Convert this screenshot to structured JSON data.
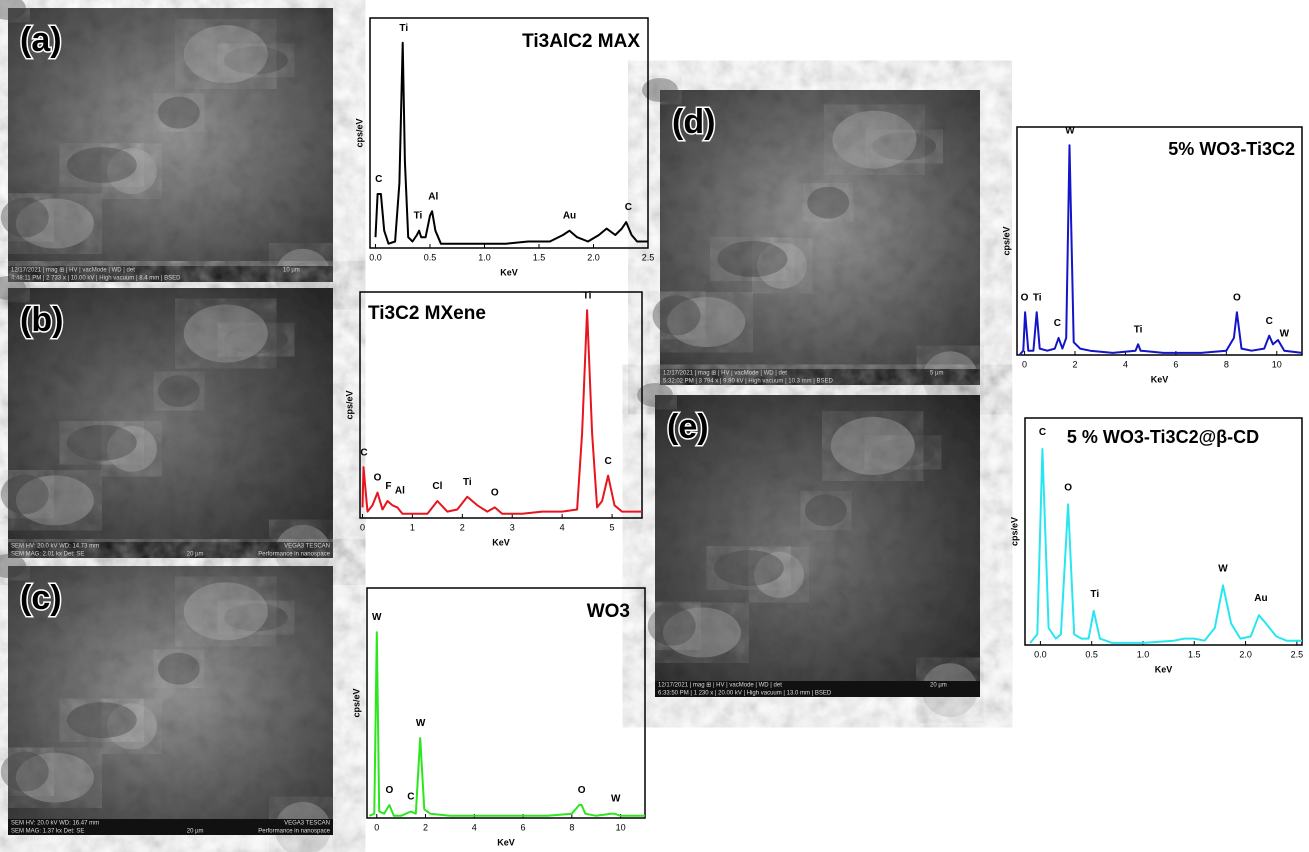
{
  "chart_data": [
    {
      "type": "line",
      "title": "Ti3AlC2 MAX",
      "xlabel": "KeV",
      "ylabel": "cps/eV",
      "color": "#000000",
      "xlim": [
        -0.05,
        2.5
      ],
      "ylim": [
        0,
        100
      ],
      "xticks": [
        {
          "value": 0,
          "label": "0.0"
        },
        {
          "value": 0.5,
          "label": "0.5"
        },
        {
          "value": 1,
          "label": "1.0"
        },
        {
          "value": 1.5,
          "label": "1.5"
        },
        {
          "value": 2,
          "label": "2.0"
        },
        {
          "value": 2.5,
          "label": "2.5"
        }
      ],
      "x": [
        0,
        0.02,
        0.05,
        0.08,
        0.12,
        0.18,
        0.22,
        0.25,
        0.27,
        0.3,
        0.34,
        0.38,
        0.4,
        0.42,
        0.46,
        0.5,
        0.52,
        0.55,
        0.6,
        0.8,
        1.0,
        1.2,
        1.4,
        1.6,
        1.72,
        1.78,
        1.85,
        1.95,
        2.05,
        2.12,
        2.2,
        2.26,
        2.3,
        2.35,
        2.4,
        2.5
      ],
      "values": [
        5,
        25,
        25,
        8,
        2,
        3,
        30,
        95,
        40,
        5,
        3,
        6,
        8,
        5,
        5,
        15,
        17,
        8,
        2,
        2,
        2,
        2,
        3,
        3,
        6,
        8,
        5,
        3,
        6,
        9,
        6,
        9,
        12,
        6,
        3,
        3
      ],
      "annotations": [
        {
          "text": "C",
          "x": 0.03,
          "y": 29
        },
        {
          "text": "Ti",
          "x": 0.26,
          "y": 99
        },
        {
          "text": "Ti",
          "x": 0.39,
          "y": 12
        },
        {
          "text": "Al",
          "x": 0.53,
          "y": 21
        },
        {
          "text": "Au",
          "x": 1.78,
          "y": 12
        },
        {
          "text": "C",
          "x": 2.32,
          "y": 16
        }
      ]
    },
    {
      "type": "line",
      "title": "Ti3C2 MXene",
      "xlabel": "KeV",
      "ylabel": "cps/eV",
      "color": "#e8141e",
      "xlim": [
        -0.05,
        5.6
      ],
      "ylim": [
        0,
        100
      ],
      "xticks": [
        0,
        1,
        2,
        3,
        4,
        5
      ],
      "x": [
        0,
        0.02,
        0.1,
        0.2,
        0.3,
        0.4,
        0.5,
        0.6,
        0.7,
        0.8,
        1.0,
        1.3,
        1.5,
        1.7,
        1.9,
        2.1,
        2.3,
        2.5,
        2.65,
        2.8,
        3.2,
        3.6,
        4.0,
        4.3,
        4.4,
        4.5,
        4.6,
        4.7,
        4.8,
        4.92,
        5.05,
        5.2,
        5.6
      ],
      "values": [
        5,
        24,
        3,
        6,
        12,
        4,
        8,
        6,
        5,
        2,
        2,
        2,
        8,
        3,
        4,
        10,
        6,
        3,
        5,
        2,
        2,
        3,
        3,
        4,
        40,
        98,
        40,
        5,
        8,
        20,
        6,
        3,
        3
      ],
      "annotations": [
        {
          "text": "C",
          "x": 0.03,
          "y": 28
        },
        {
          "text": "O",
          "x": 0.3,
          "y": 16
        },
        {
          "text": "F",
          "x": 0.52,
          "y": 12
        },
        {
          "text": "Al",
          "x": 0.75,
          "y": 10
        },
        {
          "text": "Cl",
          "x": 1.5,
          "y": 12
        },
        {
          "text": "Ti",
          "x": 2.1,
          "y": 14
        },
        {
          "text": "O",
          "x": 2.65,
          "y": 9
        },
        {
          "text": "Ti",
          "x": 4.5,
          "y": 102
        },
        {
          "text": "C",
          "x": 4.92,
          "y": 24
        }
      ]
    },
    {
      "type": "line",
      "title": "WO3",
      "xlabel": "KeV",
      "ylabel": "cps/eV",
      "color": "#2ee61e",
      "xlim": [
        -0.4,
        11
      ],
      "ylim": [
        0,
        100
      ],
      "xticks": [
        0,
        2,
        4,
        6,
        8,
        10
      ],
      "x": [
        -0.3,
        -0.1,
        0,
        0.1,
        0.3,
        0.52,
        0.7,
        1.0,
        1.4,
        1.6,
        1.78,
        1.95,
        2.2,
        3,
        4,
        5,
        6,
        7,
        8,
        8.3,
        8.4,
        8.55,
        9,
        9.6,
        9.75,
        10,
        11
      ],
      "values": [
        1,
        2,
        86,
        3,
        2,
        6,
        1,
        1,
        3,
        2,
        37,
        4,
        2,
        1,
        1,
        1,
        1,
        1,
        2,
        6,
        6,
        2,
        1,
        2,
        2,
        1,
        1
      ],
      "annotations": [
        {
          "text": "W",
          "x": 0,
          "y": 90
        },
        {
          "text": "O",
          "x": 0.52,
          "y": 10
        },
        {
          "text": "C",
          "x": 1.4,
          "y": 7
        },
        {
          "text": "W",
          "x": 1.8,
          "y": 41
        },
        {
          "text": "O",
          "x": 8.4,
          "y": 10
        },
        {
          "text": "W",
          "x": 9.8,
          "y": 6
        }
      ]
    },
    {
      "type": "line",
      "title": "5% WO3-Ti3C2",
      "xlabel": "KeV",
      "ylabel": "cps/eV",
      "color": "#1414c8",
      "xlim": [
        -0.3,
        11
      ],
      "ylim": [
        0,
        100
      ],
      "xticks": [
        0,
        2,
        4,
        6,
        8,
        10
      ],
      "x": [
        -0.2,
        -0.05,
        0.02,
        0.15,
        0.35,
        0.48,
        0.6,
        0.9,
        1.2,
        1.35,
        1.5,
        1.65,
        1.78,
        1.95,
        2.2,
        2.6,
        3.5,
        4.4,
        4.5,
        4.6,
        5.5,
        7,
        8,
        8.3,
        8.42,
        8.6,
        9,
        9.5,
        9.7,
        9.85,
        10.05,
        10.3,
        11
      ],
      "values": [
        0,
        2,
        20,
        2,
        2,
        20,
        3,
        2,
        3,
        8,
        3,
        8,
        98,
        6,
        3,
        2,
        1,
        2,
        5,
        2,
        1,
        1,
        2,
        8,
        20,
        3,
        2,
        3,
        9,
        5,
        7,
        2,
        1
      ],
      "annotations": [
        {
          "text": "O",
          "x": 0,
          "y": 24
        },
        {
          "text": "Ti",
          "x": 0.5,
          "y": 24
        },
        {
          "text": "C",
          "x": 1.3,
          "y": 12
        },
        {
          "text": "W",
          "x": 1.8,
          "y": 102
        },
        {
          "text": "Ti",
          "x": 4.5,
          "y": 9
        },
        {
          "text": "O",
          "x": 8.42,
          "y": 24
        },
        {
          "text": "C",
          "x": 9.7,
          "y": 13
        },
        {
          "text": "W",
          "x": 10.3,
          "y": 7
        }
      ]
    },
    {
      "type": "line",
      "title": "5 % WO3-Ti3C2@β-CD",
      "xlabel": "KeV",
      "ylabel": "cps/eV",
      "color": "#28e6f0",
      "xlim": [
        -0.15,
        2.55
      ],
      "ylim": [
        0,
        100
      ],
      "xticks": [
        {
          "value": 0,
          "label": "0.0"
        },
        {
          "value": 0.5,
          "label": "0.5"
        },
        {
          "value": 1,
          "label": "1.0"
        },
        {
          "value": 1.5,
          "label": "1.5"
        },
        {
          "value": 2,
          "label": "2.0"
        },
        {
          "value": 2.5,
          "label": "2.5"
        }
      ],
      "x": [
        -0.1,
        -0.03,
        0.02,
        0.08,
        0.15,
        0.2,
        0.27,
        0.33,
        0.4,
        0.47,
        0.52,
        0.58,
        0.7,
        1.0,
        1.3,
        1.4,
        1.5,
        1.6,
        1.7,
        1.78,
        1.86,
        1.95,
        2.05,
        2.13,
        2.2,
        2.3,
        2.4,
        2.55
      ],
      "values": [
        1,
        5,
        92,
        8,
        3,
        5,
        66,
        5,
        3,
        3,
        16,
        3,
        1,
        1,
        2,
        3,
        3,
        2,
        8,
        28,
        10,
        3,
        4,
        14,
        10,
        4,
        2,
        2
      ],
      "annotations": [
        {
          "text": "C",
          "x": 0.02,
          "y": 97
        },
        {
          "text": "O",
          "x": 0.27,
          "y": 71
        },
        {
          "text": "Ti",
          "x": 0.53,
          "y": 21
        },
        {
          "text": "W",
          "x": 1.78,
          "y": 33
        },
        {
          "text": "Au",
          "x": 2.15,
          "y": 19
        }
      ]
    }
  ],
  "panels": [
    {
      "label": "(a)",
      "info": [
        "12/17/2021 | mag ⊞ | HV | vacMode | WD | det",
        "4:48:11 PM | 2 733 x | 10.00 kV | High vacuum | 8.4 mm | BSED",
        "10 µm"
      ]
    },
    {
      "label": "(b)",
      "info": [
        "SEM HV: 20.0 kV    WD: 14.73 mm",
        "SEM MAG: 2.01 kx    Det: SE",
        "20 µm",
        "VEGA3 TESCAN",
        "Performance in nanospace"
      ]
    },
    {
      "label": "(c)",
      "info": [
        "SEM HV: 20.0 kV    WD: 16.47 mm",
        "SEM MAG: 1.37 kx    Det: SE",
        "20 µm",
        "VEGA3 TESCAN",
        "Performance in nanospace"
      ]
    },
    {
      "label": "(d)",
      "info": [
        "12/17/2021 | mag ⊞ | HV | vacMode | WD | det",
        "5:32:02 PM | 3 794 x | 9.80 kV | High vacuum | 10.3 mm | BSED",
        "5 µm"
      ]
    },
    {
      "label": "(e)",
      "info": [
        "12/17/2021 | mag ⊞ | HV | vacMode | WD | det",
        "6:33:50 PM | 1 230 x | 20.00 kV | High vacuum | 13.0 mm | BSED",
        "20 µm"
      ]
    }
  ]
}
